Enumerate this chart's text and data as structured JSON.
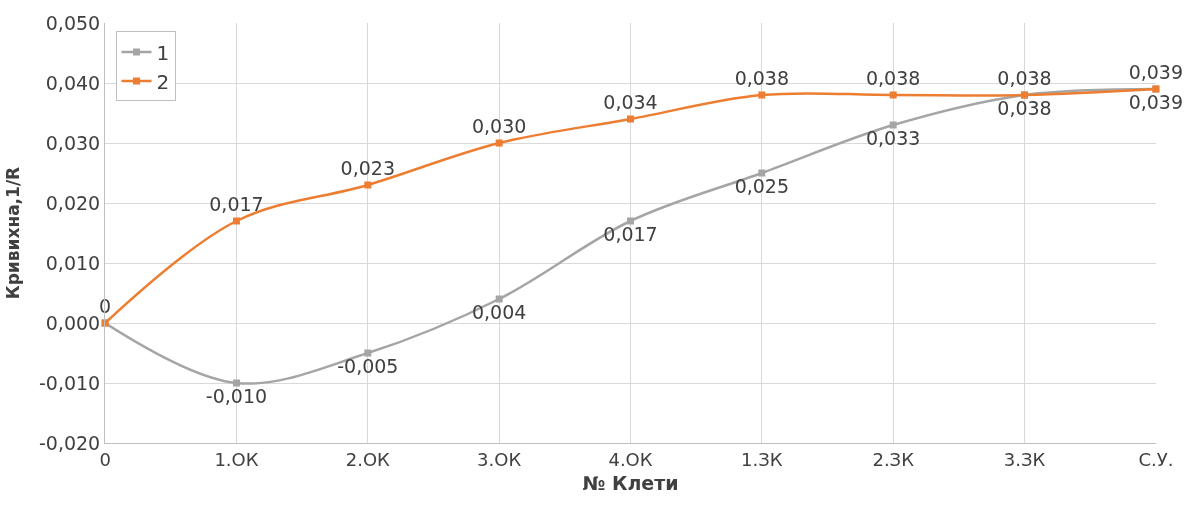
{
  "chart_data": {
    "type": "line",
    "xlabel": "№ Клети",
    "ylabel": "Кривихна,1/R",
    "categories": [
      "0",
      "1.ОК",
      "2.ОК",
      "3.ОК",
      "4.ОК",
      "1.ЗК",
      "2.ЗК",
      "3.ЗК",
      "С.У."
    ],
    "series": [
      {
        "name": "1",
        "color": "#a5a5a5",
        "values": [
          0,
          -0.01,
          -0.005,
          0.004,
          0.017,
          0.025,
          0.033,
          0.038,
          0.039
        ],
        "value_labels": [
          null,
          "-0,010",
          "-0,005",
          "0,004",
          "0,017",
          "0,025",
          "0,033",
          "0,038",
          "0,039"
        ]
      },
      {
        "name": "2",
        "color": "#ed7d31",
        "values": [
          0,
          0.017,
          0.023,
          0.03,
          0.034,
          0.038,
          0.038,
          0.038,
          0.039
        ],
        "value_labels": [
          "0",
          "0,017",
          "0,023",
          "0,030",
          "0,034",
          "0,038",
          "0,038",
          "0,038",
          "0,039"
        ]
      }
    ],
    "ylim": [
      -0.02,
      0.05
    ],
    "yticks": [
      {
        "value": -0.02,
        "label": "-0,020"
      },
      {
        "value": -0.01,
        "label": "-0,010"
      },
      {
        "value": 0,
        "label": "0,000"
      },
      {
        "value": 0.01,
        "label": "0,010"
      },
      {
        "value": 0.02,
        "label": "0,020"
      },
      {
        "value": 0.03,
        "label": "0,030"
      },
      {
        "value": 0.04,
        "label": "0,040"
      },
      {
        "value": 0.05,
        "label": "0,050"
      }
    ],
    "grid": true,
    "legend": "top left",
    "marker": "square",
    "line_style": "solid"
  }
}
